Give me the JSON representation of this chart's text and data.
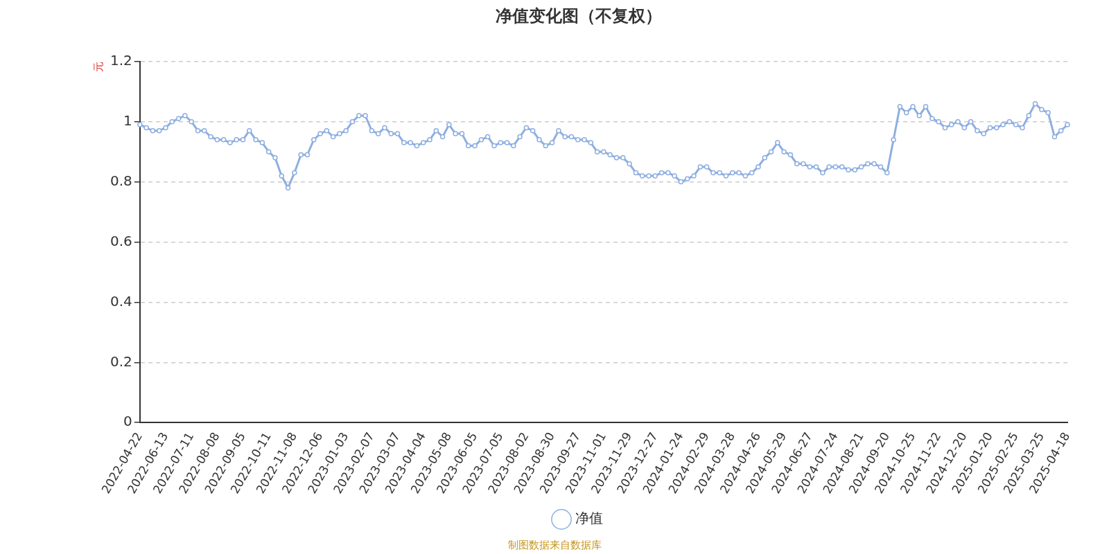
{
  "chart_data": {
    "type": "line",
    "title": "净值变化图（不复权）",
    "ylabel": "元",
    "categories": [
      "2022-04-22",
      null,
      null,
      null,
      "2022-06-13",
      null,
      null,
      null,
      "2022-07-11",
      null,
      null,
      null,
      "2022-08-08",
      null,
      null,
      null,
      "2022-09-05",
      null,
      null,
      null,
      "2022-10-11",
      null,
      null,
      null,
      "2022-11-08",
      null,
      null,
      null,
      "2022-12-06",
      null,
      null,
      null,
      "2023-01-03",
      null,
      null,
      null,
      "2023-02-07",
      null,
      null,
      null,
      "2023-03-07",
      null,
      null,
      null,
      "2023-04-04",
      null,
      null,
      null,
      "2023-05-08",
      null,
      null,
      null,
      "2023-06-05",
      null,
      null,
      null,
      "2023-07-05",
      null,
      null,
      null,
      "2023-08-02",
      null,
      null,
      null,
      "2023-08-30",
      null,
      null,
      null,
      "2023-09-27",
      null,
      null,
      null,
      "2023-11-01",
      null,
      null,
      null,
      "2023-11-29",
      null,
      null,
      null,
      "2023-12-27",
      null,
      null,
      null,
      "2024-01-24",
      null,
      null,
      null,
      "2024-02-29",
      null,
      null,
      null,
      "2024-03-28",
      null,
      null,
      null,
      "2024-04-26",
      null,
      null,
      null,
      "2024-05-29",
      null,
      null,
      null,
      "2024-06-27",
      null,
      null,
      null,
      "2024-07-24",
      null,
      null,
      null,
      "2024-08-21",
      null,
      null,
      null,
      "2024-09-20",
      null,
      null,
      null,
      "2024-10-25",
      null,
      null,
      null,
      "2024-11-22",
      null,
      null,
      null,
      "2024-12-20",
      null,
      null,
      null,
      "2025-01-20",
      null,
      null,
      null,
      "2025-02-25",
      null,
      null,
      null,
      "2025-03-25",
      null,
      null,
      null,
      "2025-04-18"
    ],
    "series": [
      {
        "name": "净值",
        "color": "#8eaee0",
        "values": [
          0.99,
          0.98,
          0.97,
          0.97,
          0.98,
          1.0,
          1.01,
          1.02,
          1.0,
          0.97,
          0.97,
          0.95,
          0.94,
          0.94,
          0.93,
          0.94,
          0.94,
          0.97,
          0.94,
          0.93,
          0.9,
          0.88,
          0.82,
          0.78,
          0.83,
          0.89,
          0.89,
          0.94,
          0.96,
          0.97,
          0.95,
          0.96,
          0.97,
          1.0,
          1.02,
          1.02,
          0.97,
          0.96,
          0.98,
          0.96,
          0.96,
          0.93,
          0.93,
          0.92,
          0.93,
          0.94,
          0.97,
          0.95,
          0.99,
          0.96,
          0.96,
          0.92,
          0.92,
          0.94,
          0.95,
          0.92,
          0.93,
          0.93,
          0.92,
          0.95,
          0.98,
          0.97,
          0.94,
          0.92,
          0.93,
          0.97,
          0.95,
          0.95,
          0.94,
          0.94,
          0.93,
          0.9,
          0.9,
          0.89,
          0.88,
          0.88,
          0.86,
          0.83,
          0.82,
          0.82,
          0.82,
          0.83,
          0.83,
          0.82,
          0.8,
          0.81,
          0.82,
          0.85,
          0.85,
          0.83,
          0.83,
          0.82,
          0.83,
          0.83,
          0.82,
          0.83,
          0.85,
          0.88,
          0.9,
          0.93,
          0.9,
          0.89,
          0.86,
          0.86,
          0.85,
          0.85,
          0.83,
          0.85,
          0.85,
          0.85,
          0.84,
          0.84,
          0.85,
          0.86,
          0.86,
          0.85,
          0.83,
          0.94,
          1.05,
          1.03,
          1.05,
          1.02,
          1.05,
          1.01,
          1.0,
          0.98,
          0.99,
          1.0,
          0.98,
          1.0,
          0.97,
          0.96,
          0.98,
          0.98,
          0.99,
          1.0,
          0.99,
          0.98,
          1.02,
          1.06,
          1.04,
          1.03,
          0.95,
          0.97,
          0.99
        ]
      }
    ],
    "ylim": [
      0,
      1.2
    ],
    "yticks": [
      0,
      0.2,
      0.4,
      0.6,
      0.8,
      1,
      1.2
    ],
    "grid": "y",
    "legend": "bottom",
    "marker": "circle",
    "line_style": "solid",
    "annotations": [
      "制图数据来自数据库"
    ]
  }
}
